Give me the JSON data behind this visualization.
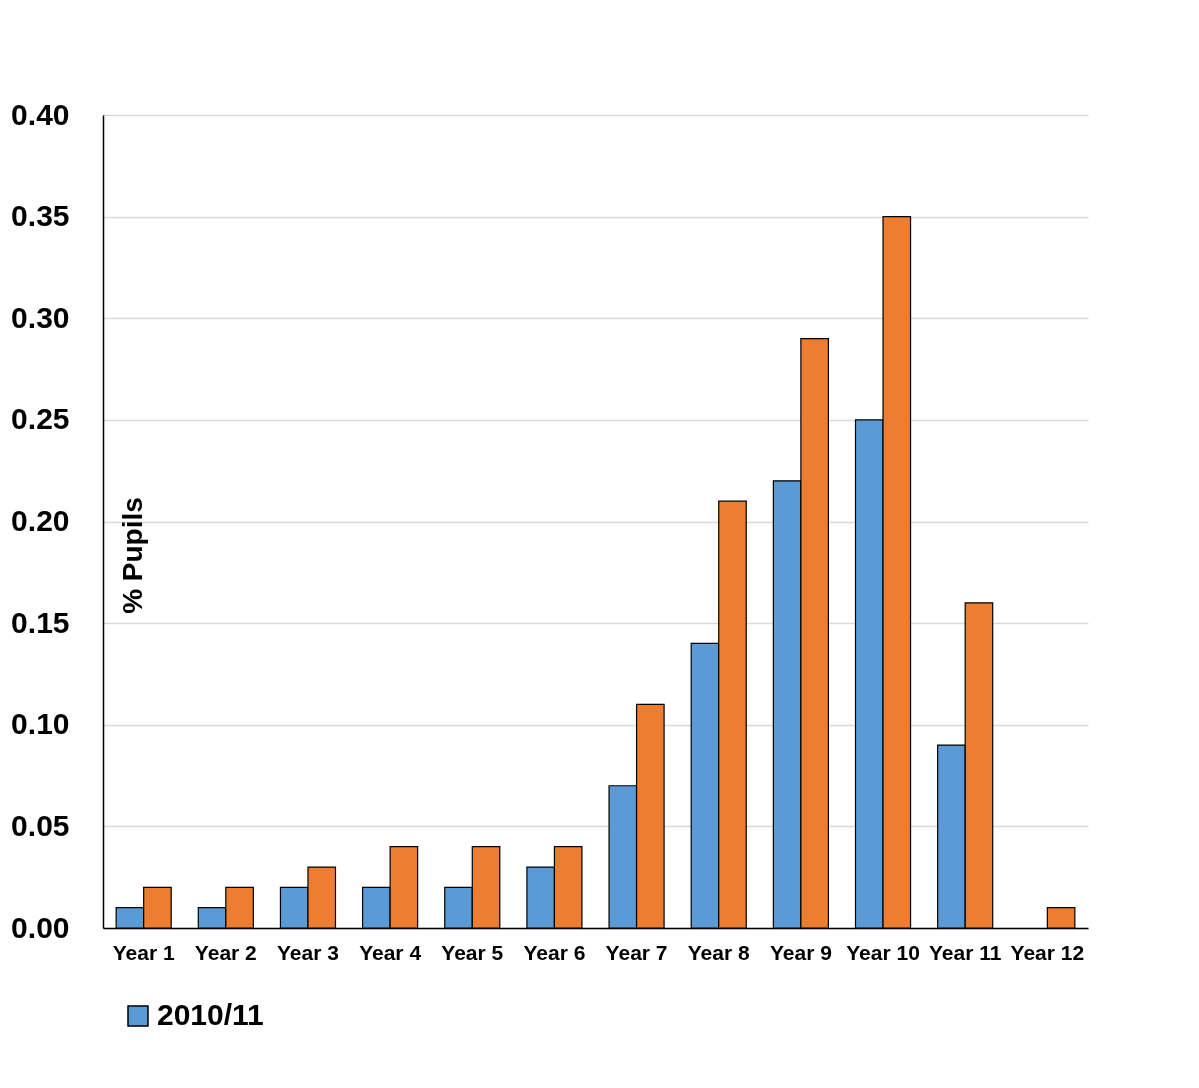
{
  "chart_data": {
    "type": "bar",
    "ylabel": "% Pupils",
    "categories": [
      "Year 1",
      "Year 2",
      "Year 3",
      "Year 4",
      "Year 5",
      "Year 6",
      "Year 7",
      "Year 8",
      "Year 9",
      "Year 10",
      "Year 11",
      "Year 12"
    ],
    "series": [
      {
        "name": "2010/11",
        "color": "#5b9bd5",
        "values": [
          0.01,
          0.01,
          0.02,
          0.02,
          0.02,
          0.03,
          0.07,
          0.14,
          0.22,
          0.25,
          0.09,
          null
        ]
      },
      {
        "color": "#ed7d31",
        "values": [
          0.02,
          0.02,
          0.03,
          0.04,
          0.04,
          0.04,
          0.11,
          0.21,
          0.29,
          0.35,
          0.16,
          0.01
        ]
      }
    ],
    "ylim": [
      0,
      0.4
    ],
    "yticks": [
      {
        "value": 0,
        "label": "0.00"
      },
      {
        "value": 0.05,
        "label": "0.05"
      },
      {
        "value": 0.1,
        "label": "0.10"
      },
      {
        "value": 0.15,
        "label": "0.15"
      },
      {
        "value": 0.2,
        "label": "0.20"
      },
      {
        "value": 0.25,
        "label": "0.25"
      },
      {
        "value": 0.3,
        "label": "0.30"
      },
      {
        "value": 0.35,
        "label": "0.35"
      },
      {
        "value": 0.4,
        "label": "0.40"
      }
    ],
    "grid": "y",
    "legend": "bottom"
  }
}
